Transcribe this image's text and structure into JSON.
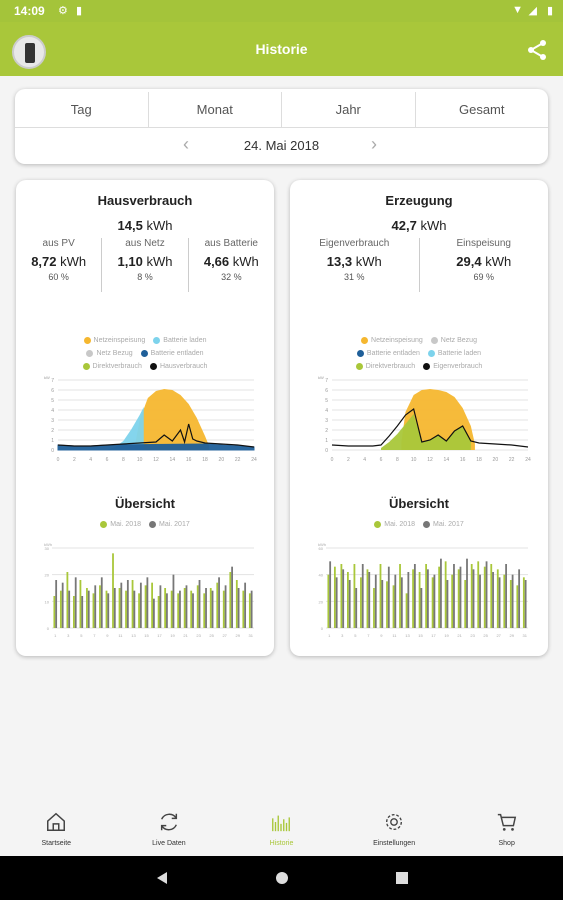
{
  "status": {
    "time": "14:09"
  },
  "appbar": {
    "title": "Historie"
  },
  "period": {
    "tabs": [
      "Tag",
      "Monat",
      "Jahr",
      "Gesamt"
    ],
    "date": "24. Mai 2018"
  },
  "colors": {
    "brand": "#a9c73a",
    "netzeinspeisung": "#f5b72f",
    "batterie_laden": "#7dd3ec",
    "netz_bezug": "#c8c8c8",
    "batterie_entladen": "#1f5f99",
    "direktverbrauch": "#a9c73a",
    "hausverbrauch": "#111111",
    "grey_bar": "#777777"
  },
  "cards": [
    {
      "title": "Hausverbrauch",
      "total_value": "14,5",
      "total_unit": "kWh",
      "metrics": [
        {
          "label": "aus PV",
          "value": "8,72",
          "unit": "kWh",
          "pct": "60 %"
        },
        {
          "label": "aus Netz",
          "value": "1,10",
          "unit": "kWh",
          "pct": "8 %"
        },
        {
          "label": "aus Batterie",
          "value": "4,66",
          "unit": "kWh",
          "pct": "32 %"
        }
      ],
      "legend": [
        [
          {
            "label": "Netzeinspeisung",
            "color": "#f5b72f"
          },
          {
            "label": "Batterie laden",
            "color": "#7dd3ec"
          }
        ],
        [
          {
            "label": "Netz Bezug",
            "color": "#c8c8c8"
          },
          {
            "label": "Batterie entladen",
            "color": "#1f5f99"
          }
        ],
        [
          {
            "label": "Direktverbrauch",
            "color": "#a9c73a"
          },
          {
            "label": "Hausverbrauch",
            "color": "#111111"
          }
        ]
      ],
      "overview_title": "Übersicht",
      "overview_legend": [
        {
          "label": "Mai. 2018",
          "color": "#a9c73a"
        },
        {
          "label": "Mai. 2017",
          "color": "#777777"
        }
      ]
    },
    {
      "title": "Erzeugung",
      "total_value": "42,7",
      "total_unit": "kWh",
      "metrics": [
        {
          "label": "Eigenverbrauch",
          "value": "13,3",
          "unit": "kWh",
          "pct": "31 %"
        },
        {
          "label": "Einspeisung",
          "value": "29,4",
          "unit": "kWh",
          "pct": "69 %"
        }
      ],
      "legend": [
        [
          {
            "label": "Netzeinspeisung",
            "color": "#f5b72f"
          },
          {
            "label": "Netz Bezug",
            "color": "#c8c8c8"
          }
        ],
        [
          {
            "label": "Batterie entladen",
            "color": "#1f5f99"
          },
          {
            "label": "Batterie laden",
            "color": "#7dd3ec"
          }
        ],
        [
          {
            "label": "Direktverbrauch",
            "color": "#a9c73a"
          },
          {
            "label": "Eigenverbrauch",
            "color": "#111111"
          }
        ]
      ],
      "overview_title": "Übersicht",
      "overview_legend": [
        {
          "label": "Mai. 2018",
          "color": "#a9c73a"
        },
        {
          "label": "Mai. 2017",
          "color": "#777777"
        }
      ]
    }
  ],
  "chart_data": [
    {
      "type": "area",
      "title": "",
      "ylabel": "kW",
      "x_ticks": [
        "0",
        "2",
        "4",
        "6",
        "8",
        "10",
        "12",
        "14",
        "16",
        "18",
        "20",
        "22",
        "24"
      ],
      "y_ticks": [
        "0",
        "1",
        "2",
        "3",
        "4",
        "5",
        "6",
        "7"
      ],
      "ylim": [
        0,
        7
      ],
      "xlim": [
        0,
        24
      ],
      "series": [
        {
          "name": "Netzeinspeisung",
          "x": [
            9.5,
            10,
            11,
            12,
            13,
            14,
            15,
            16,
            17,
            18,
            18.5
          ],
          "y": [
            0.8,
            3.0,
            5.2,
            5.9,
            6.1,
            6.0,
            5.5,
            4.6,
            3.2,
            1.4,
            0.4
          ]
        },
        {
          "name": "Batterie laden",
          "x": [
            6,
            7,
            8,
            9,
            10,
            10.5
          ],
          "y": [
            0,
            0.3,
            0.9,
            2.1,
            3.5,
            4.3
          ]
        },
        {
          "name": "Batterie entladen",
          "x": [
            0,
            2,
            4,
            6,
            18,
            20,
            22,
            24
          ],
          "y": [
            0.5,
            0.4,
            0.4,
            0.5,
            0.6,
            0.5,
            0.4,
            0.3
          ]
        },
        {
          "name": "Hausverbrauch",
          "x": [
            0,
            2,
            4,
            6,
            8,
            10,
            12,
            13,
            14,
            15,
            15.5,
            16,
            16.5,
            17,
            18,
            20,
            22,
            24
          ],
          "y": [
            0.5,
            0.4,
            0.4,
            0.5,
            0.6,
            0.7,
            0.8,
            1.5,
            0.9,
            2.0,
            0.8,
            2.6,
            1.1,
            0.9,
            0.7,
            0.6,
            0.5,
            0.3
          ]
        }
      ]
    },
    {
      "type": "bar",
      "title": "",
      "ylabel": "kWh",
      "categories": [
        "1",
        "2",
        "3",
        "4",
        "5",
        "6",
        "7",
        "8",
        "9",
        "10",
        "11",
        "12",
        "13",
        "14",
        "15",
        "16",
        "17",
        "18",
        "19",
        "20",
        "21",
        "22",
        "23",
        "24",
        "25",
        "26",
        "27",
        "28",
        "29",
        "30",
        "31"
      ],
      "ylim": [
        0,
        30
      ],
      "series": [
        {
          "name": "Mai. 2018",
          "values": [
            12,
            14,
            21,
            12,
            18,
            15,
            13,
            16,
            14,
            28,
            15,
            14,
            18,
            13,
            16,
            17,
            12,
            15,
            14,
            13,
            15,
            14,
            16,
            13,
            15,
            17,
            14,
            21,
            18,
            14,
            13
          ]
        },
        {
          "name": "Mai. 2017",
          "values": [
            18,
            17,
            14,
            19,
            12,
            14,
            16,
            19,
            13,
            15,
            17,
            18,
            14,
            17,
            19,
            11,
            16,
            13,
            20,
            14,
            16,
            13,
            18,
            15,
            14,
            19,
            16,
            23,
            15,
            17,
            14
          ]
        }
      ]
    },
    {
      "type": "area",
      "title": "",
      "ylabel": "kW",
      "x_ticks": [
        "0",
        "2",
        "4",
        "6",
        "8",
        "10",
        "12",
        "14",
        "16",
        "18",
        "20",
        "22",
        "24"
      ],
      "y_ticks": [
        "0",
        "1",
        "2",
        "3",
        "4",
        "5",
        "6",
        "7"
      ],
      "ylim": [
        0,
        7
      ],
      "xlim": [
        0,
        24
      ],
      "series": [
        {
          "name": "Netzeinspeisung",
          "x": [
            8.5,
            9,
            10,
            11,
            12,
            13,
            14,
            15,
            16,
            17,
            17.5
          ],
          "y": [
            0.8,
            3.8,
            5.5,
            6.0,
            6.1,
            6.0,
            5.8,
            5.3,
            4.2,
            2.4,
            0.6
          ]
        },
        {
          "name": "Direktverbrauch",
          "x": [
            6,
            7,
            8,
            9,
            10,
            11,
            12,
            13,
            14,
            15,
            16,
            17
          ],
          "y": [
            0.2,
            0.8,
            1.6,
            2.6,
            3.6,
            0.8,
            1.0,
            1.5,
            0.9,
            1.9,
            2.4,
            0.9
          ]
        },
        {
          "name": "Eigenverbrauch",
          "x": [
            0,
            2,
            4,
            5,
            6,
            7,
            8,
            9,
            10,
            11,
            12,
            13,
            14,
            15,
            16,
            17,
            18,
            20,
            22,
            24
          ],
          "y": [
            0.5,
            0.4,
            0.4,
            0.4,
            0.5,
            1.4,
            2.4,
            3.5,
            4.1,
            0.8,
            1.0,
            1.5,
            0.9,
            1.9,
            2.4,
            0.9,
            0.7,
            0.6,
            0.5,
            0.3
          ]
        }
      ]
    },
    {
      "type": "bar",
      "title": "",
      "ylabel": "kWh",
      "categories": [
        "1",
        "2",
        "3",
        "4",
        "5",
        "6",
        "7",
        "8",
        "9",
        "10",
        "11",
        "12",
        "13",
        "14",
        "15",
        "16",
        "17",
        "18",
        "19",
        "20",
        "21",
        "22",
        "23",
        "24",
        "25",
        "26",
        "27",
        "28",
        "29",
        "30",
        "31"
      ],
      "ylim": [
        0,
        60
      ],
      "series": [
        {
          "name": "Mai. 2018",
          "values": [
            40,
            46,
            48,
            42,
            48,
            38,
            44,
            30,
            48,
            35,
            32,
            48,
            26,
            44,
            42,
            48,
            38,
            46,
            50,
            40,
            44,
            36,
            48,
            50,
            46,
            48,
            44,
            40,
            36,
            32,
            38
          ]
        },
        {
          "name": "Mai. 2017",
          "values": [
            50,
            38,
            44,
            36,
            30,
            48,
            42,
            40,
            36,
            46,
            40,
            38,
            42,
            48,
            30,
            44,
            40,
            52,
            36,
            48,
            46,
            52,
            44,
            40,
            50,
            42,
            38,
            48,
            40,
            44,
            36
          ]
        }
      ]
    }
  ],
  "nav": [
    {
      "label": "Startseite",
      "icon": "home-icon"
    },
    {
      "label": "Live Daten",
      "icon": "refresh-icon"
    },
    {
      "label": "Historie",
      "icon": "history-icon"
    },
    {
      "label": "Einstellungen",
      "icon": "settings-icon"
    },
    {
      "label": "Shop",
      "icon": "cart-icon"
    }
  ]
}
